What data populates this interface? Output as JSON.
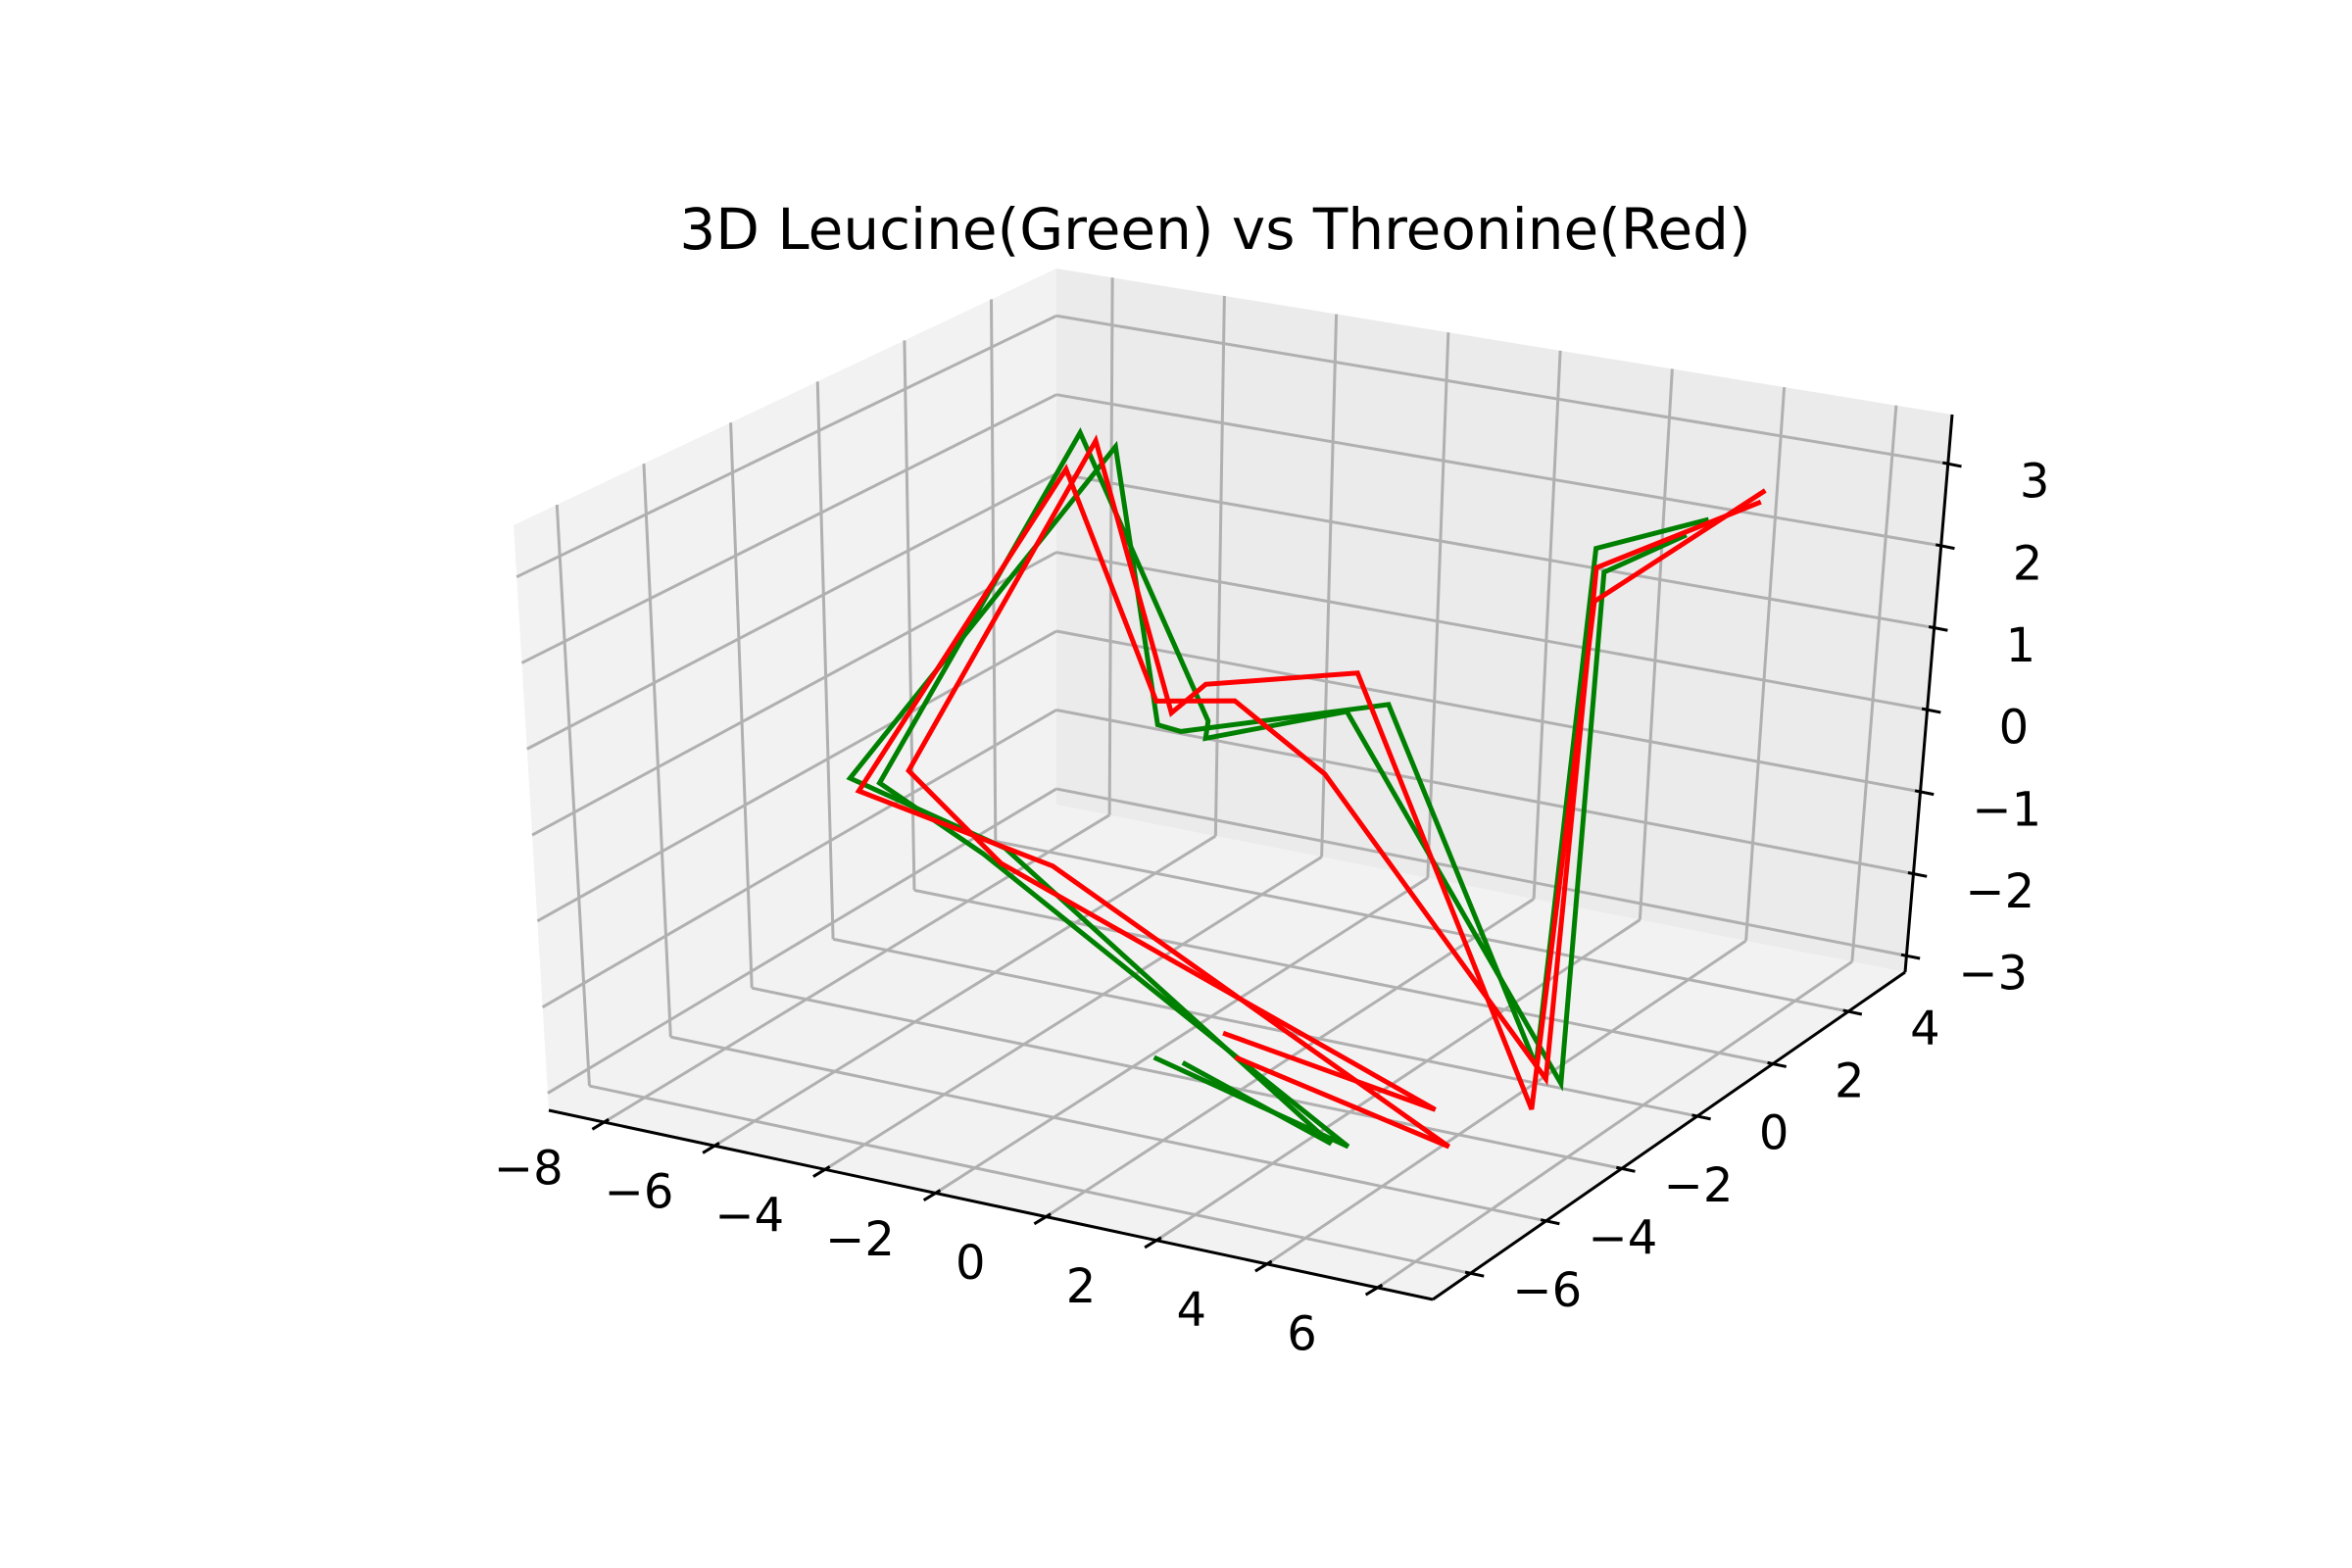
{
  "chart_data": {
    "type": "line",
    "projection": "3d",
    "title": "3D Leucine(Green) vs Threonine(Red)",
    "xlabel": "",
    "ylabel": "",
    "zlabel": "",
    "grid": true,
    "xlim": [
      -9,
      7
    ],
    "ylim": [
      -7,
      5.5
    ],
    "zlim": [
      -3.2,
      3.6
    ],
    "x_ticks": [
      -8,
      -6,
      -4,
      -2,
      0,
      2,
      4,
      6
    ],
    "y_ticks": [
      -6,
      -4,
      -2,
      0,
      2,
      4
    ],
    "z_ticks": [
      -3,
      -2,
      -1,
      0,
      1,
      2,
      3
    ],
    "x_tick_labels": [
      "−8",
      "−6",
      "−4",
      "−2",
      "0",
      "2",
      "4",
      "6"
    ],
    "y_tick_labels": [
      "−6",
      "−4",
      "−2",
      "0",
      "2",
      "4"
    ],
    "z_tick_labels": [
      "−3",
      "−2",
      "−1",
      "0",
      "1",
      "2",
      "3"
    ],
    "series": [
      {
        "color": "#008000",
        "points": [
          [
            1.6,
            -6.5,
            -1.4
          ],
          [
            4.4,
            -5.5,
            -2.3
          ],
          [
            -1.4,
            -6.5,
            0.5
          ],
          [
            -5.2,
            -3.8,
            0.2
          ],
          [
            -5.0,
            0.8,
            3.2
          ],
          [
            -3.5,
            1.9,
            -0.4
          ],
          [
            -2.3,
            0.2,
            0.0
          ],
          [
            -0.2,
            0.8,
            0.4
          ],
          [
            4.2,
            0.4,
            -3.3
          ],
          [
            4.0,
            1.2,
            2.4
          ],
          [
            5.0,
            1.8,
            2.8
          ]
        ]
      },
      {
        "color": "#008000",
        "points": [
          [
            1.9,
            -6.2,
            -1.5
          ],
          [
            4.3,
            -5.8,
            -2.2
          ],
          [
            -0.8,
            -6.8,
            0.7
          ],
          [
            -5.5,
            -4.1,
            0.3
          ],
          [
            -4.6,
            1.1,
            3.0
          ],
          [
            -3.9,
            1.2,
            -0.3
          ],
          [
            -2.6,
            0.0,
            0.1
          ],
          [
            0.4,
            1.0,
            0.5
          ],
          [
            4.0,
            0.0,
            -3.0
          ],
          [
            3.7,
            1.4,
            2.6
          ],
          [
            5.1,
            2.2,
            2.9
          ]
        ]
      },
      {
        "color": "#ff0000",
        "points": [
          [
            2.7,
            -6.0,
            -1.4
          ],
          [
            5.6,
            -4.6,
            -2.4
          ],
          [
            -0.4,
            -6.2,
            0.4
          ],
          [
            -5.5,
            -3.9,
            0.1
          ],
          [
            -5.1,
            0.6,
            2.8
          ],
          [
            -4.3,
            1.7,
            -0.2
          ],
          [
            -2.0,
            0.5,
            0.4
          ],
          [
            0.0,
            0.0,
            -0.1
          ],
          [
            4.6,
            -0.6,
            -2.9
          ],
          [
            4.0,
            1.0,
            2.5
          ],
          [
            6.0,
            2.2,
            3.2
          ]
        ]
      },
      {
        "color": "#ff0000",
        "points": [
          [
            2.2,
            -5.6,
            -1.3
          ],
          [
            5.2,
            -4.4,
            -2.1
          ],
          [
            -1.6,
            -5.8,
            0.2
          ],
          [
            -4.9,
            -3.5,
            0.3
          ],
          [
            -4.8,
            0.9,
            3.1
          ],
          [
            -3.8,
            1.4,
            -0.2
          ],
          [
            -2.6,
            0.6,
            0.5
          ],
          [
            -0.6,
            1.6,
            0.6
          ],
          [
            4.5,
            -0.8,
            -3.2
          ],
          [
            4.2,
            0.7,
            2.2
          ],
          [
            6.2,
            2.0,
            3.4
          ]
        ]
      }
    ]
  }
}
